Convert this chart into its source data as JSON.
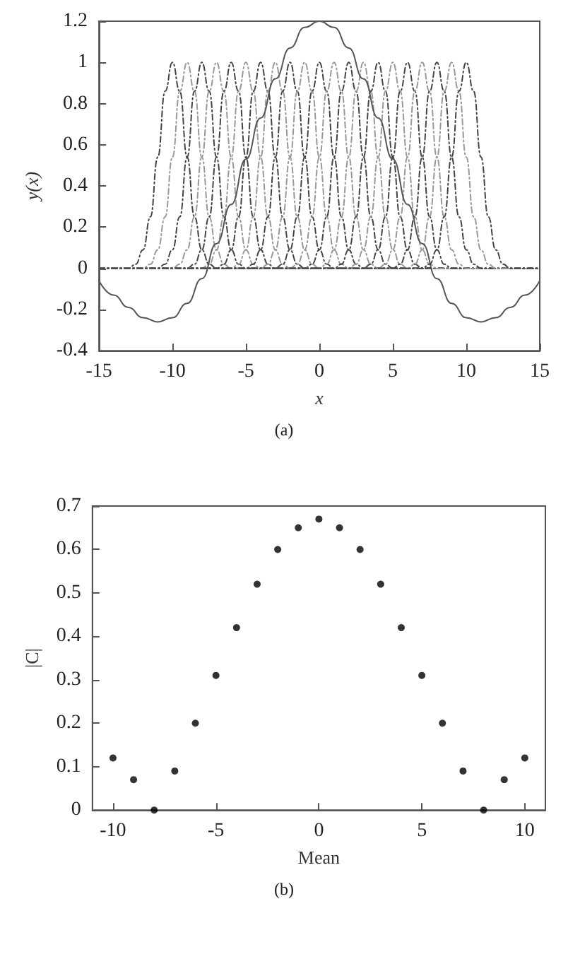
{
  "chart_data": [
    {
      "type": "line",
      "xlabel": "x",
      "ylabel": "y(x)",
      "xlim": [
        -15,
        15
      ],
      "xticks": [
        -15,
        -10,
        -5,
        0,
        5,
        10,
        15
      ],
      "ylim": [
        -0.4,
        1.2
      ],
      "yticks": [
        -0.4,
        -0.2,
        0,
        0.2,
        0.4,
        0.6,
        0.8,
        1,
        1.2
      ],
      "grid": false,
      "marker": "none",
      "annotations": [
        "(a)"
      ],
      "series": [
        {
          "color": "#444444",
          "line_style": "dashed",
          "x": [
            -15,
            -13,
            -12.5,
            -12,
            -11.5,
            -11,
            -10.5,
            -10,
            -9.5,
            -9,
            -8.5,
            -8,
            -7.5,
            -7,
            15
          ],
          "values": [
            0,
            0,
            0.02,
            0.09,
            0.25,
            0.54,
            0.86,
            1,
            0.86,
            0.54,
            0.25,
            0.09,
            0.02,
            0,
            0
          ]
        },
        {
          "color": "#999999",
          "line_style": "dashed",
          "x": [
            -15,
            -12,
            -11.5,
            -11,
            -10.5,
            -10,
            -9.5,
            -9,
            -8.5,
            -8,
            -7.5,
            -7,
            -6.5,
            -6,
            15
          ],
          "values": [
            0,
            0,
            0.02,
            0.09,
            0.25,
            0.54,
            0.86,
            1,
            0.86,
            0.54,
            0.25,
            0.09,
            0.02,
            0,
            0
          ]
        },
        {
          "color": "#444444",
          "line_style": "dashed",
          "x": [
            -15,
            -11,
            -10.5,
            -10,
            -9.5,
            -9,
            -8.5,
            -8,
            -7.5,
            -7,
            -6.5,
            -6,
            -5.5,
            -5,
            15
          ],
          "values": [
            0,
            0,
            0.02,
            0.09,
            0.25,
            0.54,
            0.86,
            1,
            0.86,
            0.54,
            0.25,
            0.09,
            0.02,
            0,
            0
          ]
        },
        {
          "color": "#999999",
          "line_style": "dashed",
          "x": [
            -15,
            -10,
            -9.5,
            -9,
            -8.5,
            -8,
            -7.5,
            -7,
            -6.5,
            -6,
            -5.5,
            -5,
            -4.5,
            -4,
            15
          ],
          "values": [
            0,
            0,
            0.02,
            0.09,
            0.25,
            0.54,
            0.86,
            1,
            0.86,
            0.54,
            0.25,
            0.09,
            0.02,
            0,
            0
          ]
        },
        {
          "color": "#444444",
          "line_style": "dashed",
          "x": [
            -15,
            -9,
            -8.5,
            -8,
            -7.5,
            -7,
            -6.5,
            -6,
            -5.5,
            -5,
            -4.5,
            -4,
            -3.5,
            -3,
            15
          ],
          "values": [
            0,
            0,
            0.02,
            0.09,
            0.25,
            0.54,
            0.86,
            1,
            0.86,
            0.54,
            0.25,
            0.09,
            0.02,
            0,
            0
          ]
        },
        {
          "color": "#999999",
          "line_style": "dashed",
          "x": [
            -15,
            -8,
            -7.5,
            -7,
            -6.5,
            -6,
            -5.5,
            -5,
            -4.5,
            -4,
            -3.5,
            -3,
            -2.5,
            -2,
            15
          ],
          "values": [
            0,
            0,
            0.02,
            0.09,
            0.25,
            0.54,
            0.86,
            1,
            0.86,
            0.54,
            0.25,
            0.09,
            0.02,
            0,
            0
          ]
        },
        {
          "color": "#444444",
          "line_style": "dashed",
          "x": [
            -15,
            -7,
            -6.5,
            -6,
            -5.5,
            -5,
            -4.5,
            -4,
            -3.5,
            -3,
            -2.5,
            -2,
            -1.5,
            -1,
            15
          ],
          "values": [
            0,
            0,
            0.02,
            0.09,
            0.25,
            0.54,
            0.86,
            1,
            0.86,
            0.54,
            0.25,
            0.09,
            0.02,
            0,
            0
          ]
        },
        {
          "color": "#999999",
          "line_style": "dashed",
          "x": [
            -15,
            -6,
            -5.5,
            -5,
            -4.5,
            -4,
            -3.5,
            -3,
            -2.5,
            -2,
            -1.5,
            -1,
            -0.5,
            0,
            15
          ],
          "values": [
            0,
            0,
            0.02,
            0.09,
            0.25,
            0.54,
            0.86,
            1,
            0.86,
            0.54,
            0.25,
            0.09,
            0.02,
            0,
            0
          ]
        },
        {
          "color": "#444444",
          "line_style": "dashed",
          "x": [
            -15,
            -5,
            -4.5,
            -4,
            -3.5,
            -3,
            -2.5,
            -2,
            -1.5,
            -1,
            -0.5,
            0,
            0.5,
            1,
            15
          ],
          "values": [
            0,
            0,
            0.02,
            0.09,
            0.25,
            0.54,
            0.86,
            1,
            0.86,
            0.54,
            0.25,
            0.09,
            0.02,
            0,
            0
          ]
        },
        {
          "color": "#999999",
          "line_style": "dashed",
          "x": [
            -15,
            -4,
            -3.5,
            -3,
            -2.5,
            -2,
            -1.5,
            -1,
            -0.5,
            0,
            0.5,
            1,
            1.5,
            2,
            15
          ],
          "values": [
            0,
            0,
            0.02,
            0.09,
            0.25,
            0.54,
            0.86,
            1,
            0.86,
            0.54,
            0.25,
            0.09,
            0.02,
            0,
            0
          ]
        },
        {
          "color": "#444444",
          "line_style": "dashed",
          "x": [
            -15,
            -3,
            -2.5,
            -2,
            -1.5,
            -1,
            -0.5,
            0,
            0.5,
            1,
            1.5,
            2,
            2.5,
            3,
            15
          ],
          "values": [
            0,
            0,
            0.02,
            0.09,
            0.25,
            0.54,
            0.86,
            1,
            0.86,
            0.54,
            0.25,
            0.09,
            0.02,
            0,
            0
          ]
        },
        {
          "color": "#999999",
          "line_style": "dashed",
          "x": [
            -15,
            -2,
            -1.5,
            -1,
            -0.5,
            0,
            0.5,
            1,
            1.5,
            2,
            2.5,
            3,
            3.5,
            4,
            15
          ],
          "values": [
            0,
            0,
            0.02,
            0.09,
            0.25,
            0.54,
            0.86,
            1,
            0.86,
            0.54,
            0.25,
            0.09,
            0.02,
            0,
            0
          ]
        },
        {
          "color": "#444444",
          "line_style": "dashed",
          "x": [
            -15,
            -1,
            -0.5,
            0,
            0.5,
            1,
            1.5,
            2,
            2.5,
            3,
            3.5,
            4,
            4.5,
            5,
            15
          ],
          "values": [
            0,
            0,
            0.02,
            0.09,
            0.25,
            0.54,
            0.86,
            1,
            0.86,
            0.54,
            0.25,
            0.09,
            0.02,
            0,
            0
          ]
        },
        {
          "color": "#999999",
          "line_style": "dashed",
          "x": [
            -15,
            0,
            0.5,
            1,
            1.5,
            2,
            2.5,
            3,
            3.5,
            4,
            4.5,
            5,
            5.5,
            6,
            15
          ],
          "values": [
            0,
            0,
            0.02,
            0.09,
            0.25,
            0.54,
            0.86,
            1,
            0.86,
            0.54,
            0.25,
            0.09,
            0.02,
            0,
            0
          ]
        },
        {
          "color": "#444444",
          "line_style": "dashed",
          "x": [
            -15,
            1,
            1.5,
            2,
            2.5,
            3,
            3.5,
            4,
            4.5,
            5,
            5.5,
            6,
            6.5,
            7,
            15
          ],
          "values": [
            0,
            0,
            0.02,
            0.09,
            0.25,
            0.54,
            0.86,
            1,
            0.86,
            0.54,
            0.25,
            0.09,
            0.02,
            0,
            0
          ]
        },
        {
          "color": "#999999",
          "line_style": "dashed",
          "x": [
            -15,
            2,
            2.5,
            3,
            3.5,
            4,
            4.5,
            5,
            5.5,
            6,
            6.5,
            7,
            7.5,
            8,
            15
          ],
          "values": [
            0,
            0,
            0.02,
            0.09,
            0.25,
            0.54,
            0.86,
            1,
            0.86,
            0.54,
            0.25,
            0.09,
            0.02,
            0,
            0
          ]
        },
        {
          "color": "#444444",
          "line_style": "dashed",
          "x": [
            -15,
            3,
            3.5,
            4,
            4.5,
            5,
            5.5,
            6,
            6.5,
            7,
            7.5,
            8,
            8.5,
            9,
            15
          ],
          "values": [
            0,
            0,
            0.02,
            0.09,
            0.25,
            0.54,
            0.86,
            1,
            0.86,
            0.54,
            0.25,
            0.09,
            0.02,
            0,
            0
          ]
        },
        {
          "color": "#999999",
          "line_style": "dashed",
          "x": [
            -15,
            4,
            4.5,
            5,
            5.5,
            6,
            6.5,
            7,
            7.5,
            8,
            8.5,
            9,
            9.5,
            10,
            15
          ],
          "values": [
            0,
            0,
            0.02,
            0.09,
            0.25,
            0.54,
            0.86,
            1,
            0.86,
            0.54,
            0.25,
            0.09,
            0.02,
            0,
            0
          ]
        },
        {
          "color": "#444444",
          "line_style": "dashed",
          "x": [
            -15,
            5,
            5.5,
            6,
            6.5,
            7,
            7.5,
            8,
            8.5,
            9,
            9.5,
            10,
            10.5,
            11,
            15
          ],
          "values": [
            0,
            0,
            0.02,
            0.09,
            0.25,
            0.54,
            0.86,
            1,
            0.86,
            0.54,
            0.25,
            0.09,
            0.02,
            0,
            0
          ]
        },
        {
          "color": "#999999",
          "line_style": "dashed",
          "x": [
            -15,
            6,
            6.5,
            7,
            7.5,
            8,
            8.5,
            9,
            9.5,
            10,
            10.5,
            11,
            11.5,
            12,
            15
          ],
          "values": [
            0,
            0,
            0.02,
            0.09,
            0.25,
            0.54,
            0.86,
            1,
            0.86,
            0.54,
            0.25,
            0.09,
            0.02,
            0,
            0
          ]
        },
        {
          "color": "#444444",
          "line_style": "dashed",
          "x": [
            -15,
            7,
            7.5,
            8,
            8.5,
            9,
            9.5,
            10,
            10.5,
            11,
            11.5,
            12,
            12.5,
            13,
            15
          ],
          "values": [
            0,
            0,
            0.02,
            0.09,
            0.25,
            0.54,
            0.86,
            1,
            0.86,
            0.54,
            0.25,
            0.09,
            0.02,
            0,
            0
          ]
        },
        {
          "color": "#555555",
          "line_style": "solid",
          "x": [
            -15,
            -14,
            -13,
            -12,
            -11,
            -10,
            -9,
            -8,
            -7,
            -6,
            -5,
            -4,
            -3,
            -2,
            -1,
            0,
            1,
            2,
            3,
            4,
            5,
            6,
            7,
            8,
            9,
            10,
            11,
            12,
            13,
            14,
            15
          ],
          "values": [
            -0.06,
            -0.13,
            -0.19,
            -0.24,
            -0.26,
            -0.24,
            -0.17,
            -0.05,
            0.12,
            0.31,
            0.53,
            0.73,
            0.92,
            1.07,
            1.17,
            1.2,
            1.17,
            1.07,
            0.92,
            0.73,
            0.53,
            0.31,
            0.12,
            -0.05,
            -0.17,
            -0.24,
            -0.26,
            -0.24,
            -0.19,
            -0.13,
            -0.06
          ]
        }
      ]
    },
    {
      "type": "scatter",
      "xlabel": "Mean",
      "ylabel": "|C|",
      "xlim": [
        -11,
        11
      ],
      "xticks": [
        -10,
        -5,
        0,
        5,
        10
      ],
      "ylim": [
        0,
        0.7
      ],
      "yticks": [
        0,
        0.1,
        0.2,
        0.3,
        0.4,
        0.5,
        0.6,
        0.7
      ],
      "grid": false,
      "marker": "circle",
      "annotations": [
        "(b)"
      ],
      "series": [
        {
          "color": "#000000",
          "x": [
            -10,
            -9,
            -8,
            -7,
            -6,
            -5,
            -4,
            -3,
            -2,
            -1,
            0,
            1,
            2,
            3,
            4,
            5,
            6,
            7,
            8,
            9,
            10
          ],
          "values": [
            0.12,
            0.07,
            0,
            0.09,
            0.2,
            0.31,
            0.42,
            0.52,
            0.6,
            0.65,
            0.67,
            0.65,
            0.6,
            0.52,
            0.42,
            0.31,
            0.2,
            0.09,
            0,
            0.07,
            0.12
          ]
        }
      ]
    }
  ]
}
